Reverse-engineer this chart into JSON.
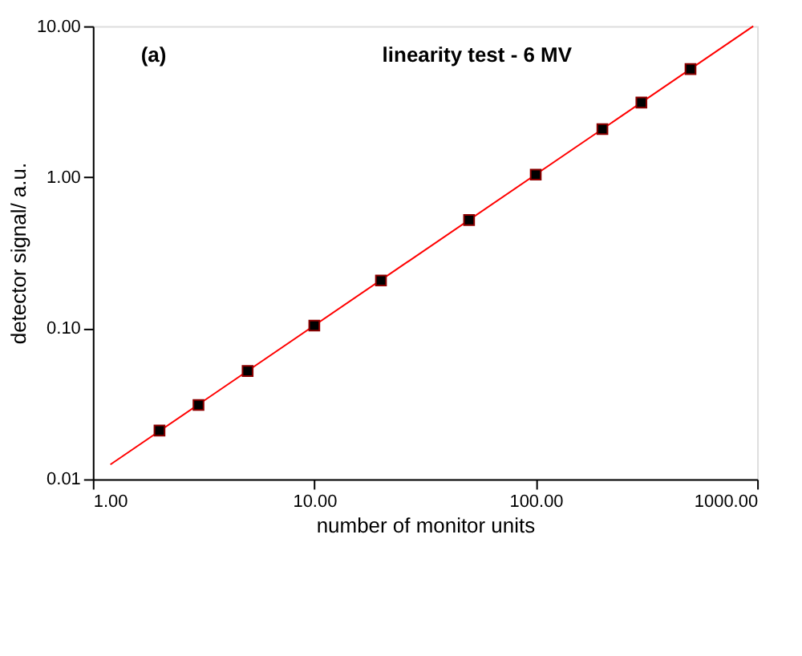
{
  "chart_data": {
    "type": "scatter",
    "title": "linearity test - 6 MV",
    "xlabel": "number of monitor units",
    "ylabel": "detector signal/ a.u.",
    "annotations": [
      "(a)"
    ],
    "x": [
      2,
      3,
      5,
      10,
      20,
      50,
      100,
      200,
      300,
      500
    ],
    "series": [
      {
        "color": "#000000",
        "marker": "square",
        "values": [
          0.021,
          0.031,
          0.052,
          0.104,
          0.207,
          0.52,
          1.04,
          2.08,
          3.12,
          5.2
        ]
      },
      {
        "type": "line",
        "color": "#ff0000",
        "x": [
          1.2,
          960
        ],
        "values": [
          0.0125,
          10.0
        ]
      }
    ],
    "log": "xy",
    "xlim": [
      1,
      1000
    ],
    "ylim": [
      0.01,
      10
    ],
    "xticks": [
      {
        "value": 1,
        "label": "1.00"
      },
      {
        "value": 10,
        "label": "10.00"
      },
      {
        "value": 100,
        "label": "100.00"
      },
      {
        "value": 1000,
        "label": "1000.00"
      }
    ],
    "yticks": [
      {
        "value": 0.01,
        "label": "0.01"
      },
      {
        "value": 0.1,
        "label": "0.10"
      },
      {
        "value": 1,
        "label": "1.00"
      },
      {
        "value": 10,
        "label": "10.00"
      }
    ]
  }
}
